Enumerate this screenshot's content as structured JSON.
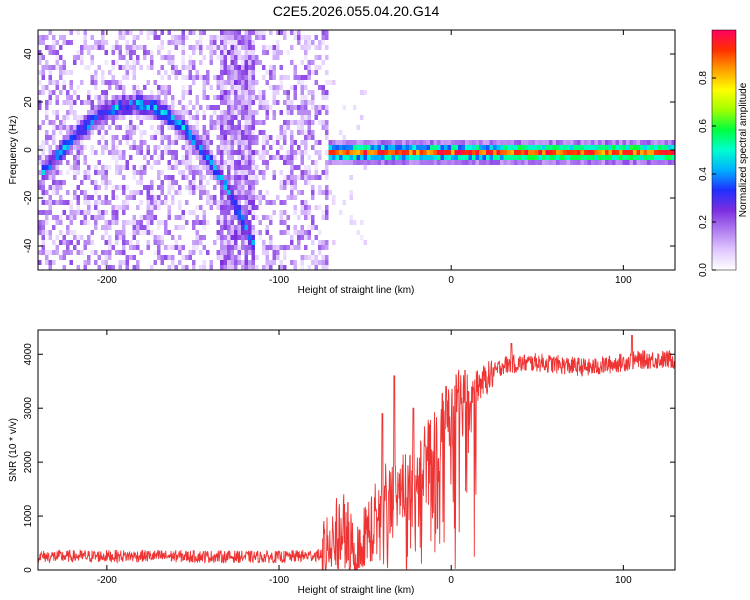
{
  "figure": {
    "title": "C2E5.2026.055.04.20.G14"
  },
  "chart_data": [
    {
      "type": "heatmap",
      "xlabel": "Height of straight line (km)",
      "ylabel": "Frequency (Hz)",
      "xlim": [
        -240,
        130
      ],
      "ylim": [
        -50,
        50
      ],
      "xticks": [
        -200,
        -100,
        0,
        100
      ],
      "yticks": [
        -40,
        -20,
        0,
        20,
        40
      ],
      "colorbar": {
        "label": "Normalized spectral amplitude",
        "range": [
          0,
          1
        ],
        "ticks": [
          0.0,
          0.2,
          0.4,
          0.6,
          0.8
        ],
        "colors": [
          "#ffffff",
          "#e0c8ff",
          "#b07cf0",
          "#7a2ee0",
          "#2030ff",
          "#00b0ff",
          "#00ffd0",
          "#00ff40",
          "#a0ff00",
          "#ffff00",
          "#ffa000",
          "#ff3000",
          "#ff0060"
        ]
      },
      "features": {
        "noise_region_x": [
          -240,
          -72
        ],
        "arc": {
          "x_range": [
            -240,
            -115
          ],
          "peak_x": -185,
          "peak_freq": 20,
          "start_freq": -10,
          "end_freq": -40
        },
        "carrier_line": {
          "x_range": [
            -72,
            130
          ],
          "freq": 0,
          "half_width_hz": 3
        },
        "vertical_band_x": -125
      }
    },
    {
      "type": "line",
      "xlabel": "Height of straight line (km)",
      "ylabel": "SNR (10 * v/v)",
      "xlim": [
        -240,
        130
      ],
      "ylim": [
        0,
        4450
      ],
      "xticks": [
        -200,
        -100,
        0,
        100
      ],
      "yticks": [
        0,
        1000,
        2000,
        3000,
        4000
      ],
      "series": [
        {
          "color": "#ee3333",
          "profile": [
            [
              -240,
              250
            ],
            [
              -180,
              260
            ],
            [
              -100,
              240
            ],
            [
              -75,
              280
            ],
            [
              -62,
              850
            ],
            [
              -55,
              150
            ],
            [
              -48,
              750
            ],
            [
              -38,
              1300
            ],
            [
              -25,
              1600
            ],
            [
              -15,
              2000
            ],
            [
              -5,
              2600
            ],
            [
              5,
              3100
            ],
            [
              15,
              3400
            ],
            [
              30,
              3800
            ],
            [
              50,
              3850
            ],
            [
              80,
              3750
            ],
            [
              110,
              3900
            ],
            [
              130,
              3900
            ]
          ],
          "spikes": [
            [
              -60,
              1250
            ],
            [
              -40,
              2900
            ],
            [
              -33,
              3600
            ],
            [
              -22,
              3000
            ],
            [
              -15,
              2300
            ],
            [
              -3,
              3400
            ],
            [
              8,
              3700
            ],
            [
              35,
              4200
            ],
            [
              105,
              4350
            ]
          ]
        }
      ]
    }
  ]
}
